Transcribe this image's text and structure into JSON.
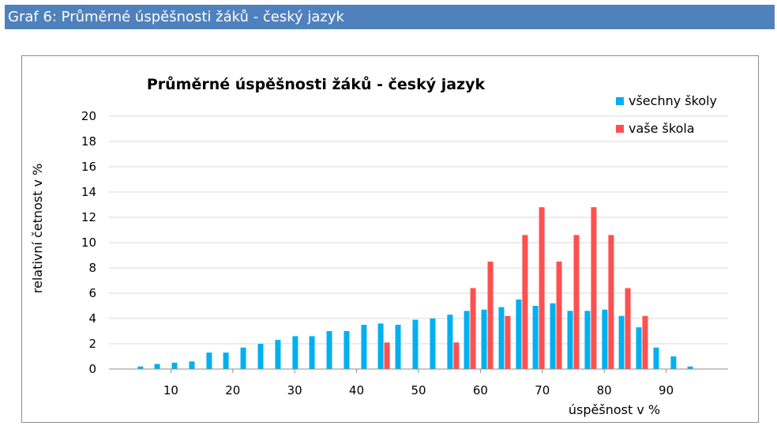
{
  "header": {
    "title": "Graf 6: Průměrné úspěšnosti žáků - český jazyk"
  },
  "colors": {
    "header_bg": "#4f81bd",
    "series_all": "#00b0f0",
    "series_school": "#ff5050",
    "grid": "#d9d9d9"
  },
  "chart_data": {
    "type": "bar",
    "title": "Průměrné úspěšnosti žáků - český jazyk",
    "xlabel": "úspěšnost v %",
    "ylabel": "relativní četnost v %",
    "ylim": [
      0,
      20
    ],
    "yticks": [
      "0",
      "2",
      "4",
      "6",
      "8",
      "10",
      "12",
      "14",
      "16",
      "18",
      "20"
    ],
    "xtick_labels": [
      "10",
      "20",
      "30",
      "40",
      "50",
      "60",
      "70",
      "80",
      "90"
    ],
    "grid": true,
    "legend_position": "top-right",
    "categories": [
      0,
      2.8,
      5.6,
      8.3,
      11.1,
      13.9,
      16.7,
      19.4,
      22.2,
      25,
      27.8,
      30.6,
      33.3,
      36.1,
      38.9,
      41.7,
      44.4,
      47.2,
      50,
      52.8,
      55.6,
      58.3,
      61.1,
      63.9,
      66.7,
      69.4,
      72.2,
      75,
      77.8,
      80.6,
      83.3,
      86.1,
      88.9,
      91.7,
      94.4,
      97.2,
      100
    ],
    "series": [
      {
        "name": "všechny školy",
        "values": [
          0,
          0,
          0.2,
          0.4,
          0.5,
          0.6,
          1.3,
          1.3,
          1.7,
          2.0,
          2.3,
          2.6,
          2.6,
          3.0,
          3.0,
          3.5,
          3.6,
          3.5,
          3.9,
          4.0,
          4.3,
          4.6,
          4.7,
          4.9,
          5.5,
          5.0,
          5.2,
          4.6,
          4.6,
          4.7,
          4.2,
          3.3,
          1.7,
          1.0,
          0.2,
          0,
          0
        ]
      },
      {
        "name": "vaše škola",
        "values": [
          0,
          0,
          0,
          0,
          0,
          0,
          0,
          0,
          0,
          0,
          0,
          0,
          0,
          0,
          0,
          0,
          2.1,
          0,
          0,
          0,
          2.1,
          6.4,
          8.5,
          4.2,
          10.6,
          12.8,
          8.5,
          10.6,
          12.8,
          10.6,
          6.4,
          4.2,
          0,
          0,
          0,
          0,
          0
        ]
      }
    ]
  }
}
